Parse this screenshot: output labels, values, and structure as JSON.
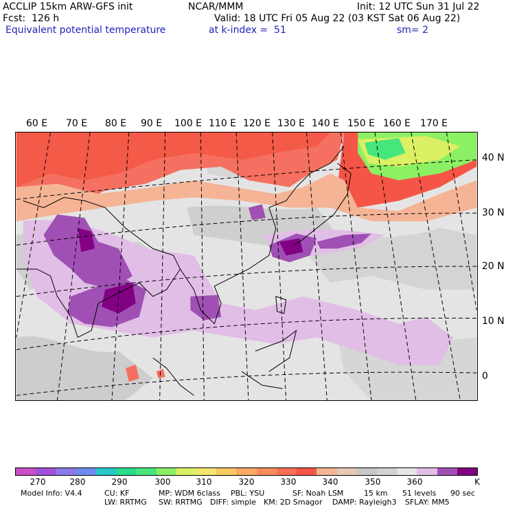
{
  "header": {
    "line1_left": "ACCLIP 15km ARW-GFS init",
    "line1_center": "NCAR/MMM",
    "line1_right": "Init: 12 UTC Sun 31 Jul 22",
    "line2_left": "Fcst:  126 h",
    "line2_right": "Valid: 18 UTC Fri 05 Aug 22 (03 KST Sat 06 Aug 22)",
    "line3_left": "Equivalent potential temperature",
    "line3_center": "at k-index =  51",
    "line3_right": "sm= 2"
  },
  "longitude_labels": [
    "60 E",
    "70 E",
    "80 E",
    "90 E",
    "100 E",
    "110 E",
    "120 E",
    "130 E",
    "140 E",
    "150 E",
    "160 E",
    "170 E"
  ],
  "latitude_labels": [
    "40 N",
    "30 N",
    "20 N",
    "10 N",
    "0"
  ],
  "colorbar": {
    "unit": "K",
    "tick_labels": [
      "270",
      "280",
      "290",
      "300",
      "310",
      "320",
      "330",
      "340",
      "350",
      "360"
    ],
    "colors": [
      "#c850c8",
      "#a050dc",
      "#8c78e6",
      "#6e8cf0",
      "#28c8c8",
      "#28dc8c",
      "#46e67d",
      "#8cf064",
      "#dcf064",
      "#f5e66e",
      "#fac864",
      "#faaa64",
      "#fa8c5a",
      "#fa6e55",
      "#f55546",
      "#f5b496",
      "#e6c8b4",
      "#c8c8c8",
      "#d2d2d2",
      "#e6e6e6",
      "#e1bee6",
      "#a050b4",
      "#820082"
    ]
  },
  "footer": {
    "line1": [
      "Model Info: V4.4",
      "CU: KF",
      "MP: WDM 6class",
      "PBL: YSU",
      "SF: Noah LSM",
      "15 km",
      "51 levels",
      "90 sec"
    ],
    "line2": [
      "LW: RRTMG",
      "SW: RRTMG",
      "DIFF: simple",
      "KM: 2D Smagor",
      "DAMP: Rayleigh3",
      "SFLAY: MM5"
    ]
  }
}
